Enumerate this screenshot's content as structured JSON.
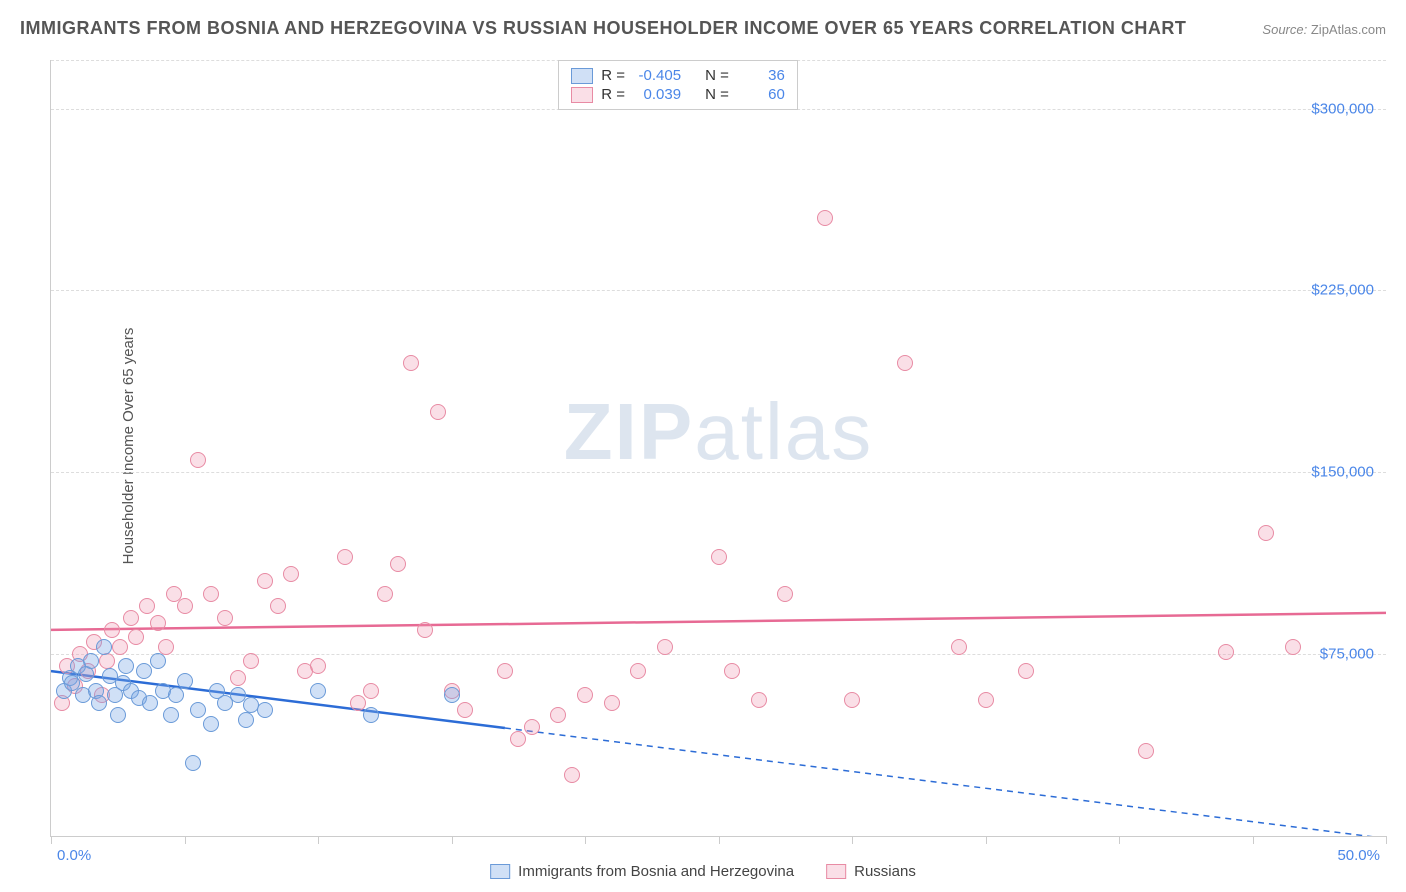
{
  "title": "IMMIGRANTS FROM BOSNIA AND HERZEGOVINA VS RUSSIAN HOUSEHOLDER INCOME OVER 65 YEARS CORRELATION CHART",
  "source_label": "Source:",
  "source_value": "ZipAtlas.com",
  "y_axis_label": "Householder Income Over 65 years",
  "watermark_zip": "ZIP",
  "watermark_atlas": "atlas",
  "series": [
    {
      "key": "bosnia",
      "name": "Immigrants from Bosnia and Herzegovina",
      "r": "-0.405",
      "n": "36",
      "fill": "rgba(120,165,230,0.35)",
      "stroke": "#6a9ad8",
      "line": "#2c6cd6",
      "trend": {
        "y_start": 68000,
        "y_end": -1000,
        "solid_until_x": 17
      }
    },
    {
      "key": "russians",
      "name": "Russians",
      "r": "0.039",
      "n": "60",
      "fill": "rgba(240,150,175,0.3)",
      "stroke": "#e88ba4",
      "line": "#e76a94",
      "trend": {
        "y_start": 85000,
        "y_end": 92000,
        "solid_until_x": 50
      }
    }
  ],
  "legend_r_label": "R =",
  "legend_n_label": "N =",
  "x_axis": {
    "min": 0,
    "max": 50,
    "tick_step": 5,
    "labels": {
      "min": "0.0%",
      "max": "50.0%"
    }
  },
  "y_axis": {
    "min": 0,
    "max": 320000,
    "gridlines": [
      75000,
      150000,
      225000,
      300000
    ],
    "labels": [
      "$75,000",
      "$150,000",
      "$225,000",
      "$300,000"
    ]
  },
  "marker_radius": 8,
  "points_bosnia": [
    [
      0.5,
      60000
    ],
    [
      0.7,
      65000
    ],
    [
      0.8,
      63000
    ],
    [
      1.0,
      70000
    ],
    [
      1.2,
      58000
    ],
    [
      1.3,
      67000
    ],
    [
      1.5,
      72000
    ],
    [
      1.7,
      60000
    ],
    [
      1.8,
      55000
    ],
    [
      2.0,
      78000
    ],
    [
      2.2,
      66000
    ],
    [
      2.4,
      58000
    ],
    [
      2.5,
      50000
    ],
    [
      2.7,
      63000
    ],
    [
      2.8,
      70000
    ],
    [
      3.0,
      60000
    ],
    [
      3.3,
      57000
    ],
    [
      3.5,
      68000
    ],
    [
      3.7,
      55000
    ],
    [
      4.0,
      72000
    ],
    [
      4.2,
      60000
    ],
    [
      4.5,
      50000
    ],
    [
      4.7,
      58000
    ],
    [
      5.0,
      64000
    ],
    [
      5.3,
      30000
    ],
    [
      5.5,
      52000
    ],
    [
      6.0,
      46000
    ],
    [
      6.2,
      60000
    ],
    [
      6.5,
      55000
    ],
    [
      7.0,
      58000
    ],
    [
      7.3,
      48000
    ],
    [
      7.5,
      54000
    ],
    [
      8.0,
      52000
    ],
    [
      10.0,
      60000
    ],
    [
      12.0,
      50000
    ],
    [
      15.0,
      58000
    ]
  ],
  "points_russians": [
    [
      0.4,
      55000
    ],
    [
      0.6,
      70000
    ],
    [
      0.9,
      62000
    ],
    [
      1.1,
      75000
    ],
    [
      1.4,
      68000
    ],
    [
      1.6,
      80000
    ],
    [
      1.9,
      58000
    ],
    [
      2.1,
      72000
    ],
    [
      2.3,
      85000
    ],
    [
      2.6,
      78000
    ],
    [
      3.0,
      90000
    ],
    [
      3.2,
      82000
    ],
    [
      3.6,
      95000
    ],
    [
      4.0,
      88000
    ],
    [
      4.3,
      78000
    ],
    [
      4.6,
      100000
    ],
    [
      5.0,
      95000
    ],
    [
      5.5,
      155000
    ],
    [
      6.0,
      100000
    ],
    [
      6.5,
      90000
    ],
    [
      7.0,
      65000
    ],
    [
      7.5,
      72000
    ],
    [
      8.0,
      105000
    ],
    [
      8.5,
      95000
    ],
    [
      9.0,
      108000
    ],
    [
      9.5,
      68000
    ],
    [
      10.0,
      70000
    ],
    [
      11.0,
      115000
    ],
    [
      11.5,
      55000
    ],
    [
      12.0,
      60000
    ],
    [
      12.5,
      100000
    ],
    [
      13.0,
      112000
    ],
    [
      13.5,
      195000
    ],
    [
      14.0,
      85000
    ],
    [
      14.5,
      175000
    ],
    [
      15.0,
      60000
    ],
    [
      15.5,
      52000
    ],
    [
      17.0,
      68000
    ],
    [
      17.5,
      40000
    ],
    [
      18.0,
      45000
    ],
    [
      19.0,
      50000
    ],
    [
      19.5,
      25000
    ],
    [
      20.0,
      58000
    ],
    [
      21.0,
      55000
    ],
    [
      22.0,
      68000
    ],
    [
      23.0,
      78000
    ],
    [
      25.0,
      115000
    ],
    [
      25.5,
      68000
    ],
    [
      26.5,
      56000
    ],
    [
      27.5,
      100000
    ],
    [
      29.0,
      255000
    ],
    [
      30.0,
      56000
    ],
    [
      32.0,
      195000
    ],
    [
      34.0,
      78000
    ],
    [
      35.0,
      56000
    ],
    [
      36.5,
      68000
    ],
    [
      41.0,
      35000
    ],
    [
      44.0,
      76000
    ],
    [
      45.5,
      125000
    ],
    [
      46.5,
      78000
    ]
  ]
}
